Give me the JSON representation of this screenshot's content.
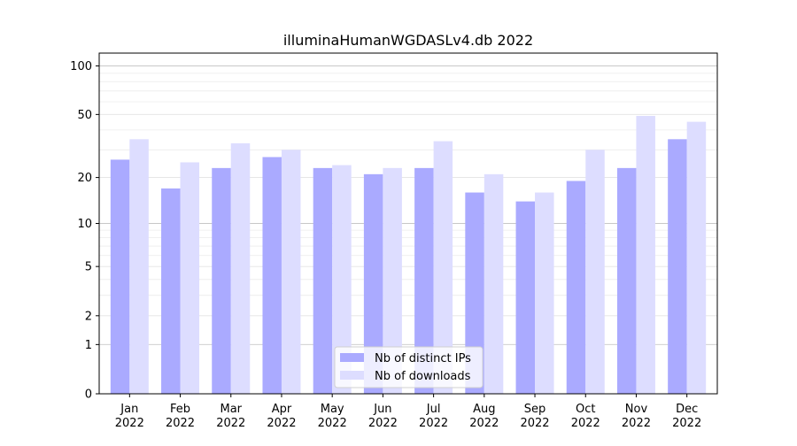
{
  "chart_data": {
    "type": "bar",
    "title": "illuminaHumanWGDASLv4.db 2022",
    "xlabel": "",
    "ylabel": "",
    "y_scale": "log1p",
    "ylim": [
      0,
      120
    ],
    "y_ticks": [
      0,
      1,
      2,
      5,
      10,
      20,
      50,
      100
    ],
    "y_tick_labels": [
      "0",
      "1",
      "2",
      "5",
      "10",
      "20",
      "50",
      "100"
    ],
    "grid": true,
    "legend_position": "bottom-center",
    "categories": [
      [
        "Jan",
        "2022"
      ],
      [
        "Feb",
        "2022"
      ],
      [
        "Mar",
        "2022"
      ],
      [
        "Apr",
        "2022"
      ],
      [
        "May",
        "2022"
      ],
      [
        "Jun",
        "2022"
      ],
      [
        "Jul",
        "2022"
      ],
      [
        "Aug",
        "2022"
      ],
      [
        "Sep",
        "2022"
      ],
      [
        "Oct",
        "2022"
      ],
      [
        "Nov",
        "2022"
      ],
      [
        "Dec",
        "2022"
      ]
    ],
    "series": [
      {
        "name": "Nb of distinct IPs",
        "color": "#aaaaff",
        "values": [
          26,
          17,
          23,
          27,
          23,
          21,
          23,
          16,
          14,
          19,
          23,
          35
        ]
      },
      {
        "name": "Nb of downloads",
        "color": "#ddddff",
        "values": [
          35,
          25,
          33,
          30,
          24,
          23,
          34,
          21,
          16,
          30,
          49,
          45
        ]
      }
    ]
  }
}
